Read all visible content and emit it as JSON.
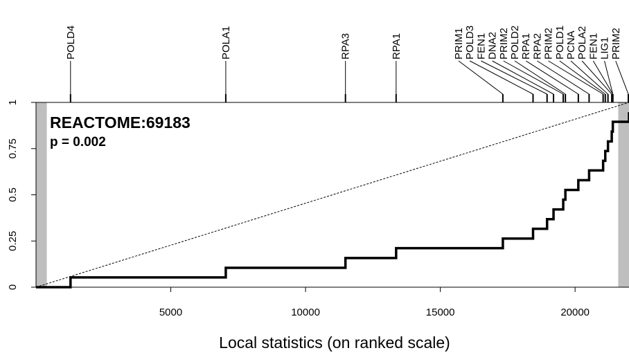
{
  "chart_data": {
    "type": "line",
    "title": "REACTOME:69183",
    "subtitle": "p = 0.002",
    "xlabel": "Local statistics (on ranked scale)",
    "ylabel": "",
    "xlim": [
      0,
      22000
    ],
    "ylim": [
      0,
      1
    ],
    "x_ticks": [
      5000,
      10000,
      15000,
      20000
    ],
    "x_tick_labels": [
      "5000",
      "10000",
      "15000",
      "20000"
    ],
    "y_ticks": [
      0,
      0.25,
      0.5,
      0.75,
      1
    ],
    "y_tick_labels": [
      "0",
      "0.25",
      "0.5",
      "0.75",
      "1"
    ],
    "shaded_regions": [
      [
        0,
        400
      ],
      [
        21600,
        22000
      ]
    ],
    "diagonal_reference": true,
    "grid": false,
    "series": [
      {
        "x": [
          0,
          1280,
          7040,
          11480,
          13360,
          17320,
          18440,
          18960,
          19200,
          19560,
          19640,
          20120,
          20520,
          21040,
          21120,
          21220,
          21360,
          21400,
          22000
        ],
        "y": [
          0,
          0.053,
          0.105,
          0.158,
          0.211,
          0.263,
          0.316,
          0.368,
          0.421,
          0.474,
          0.526,
          0.579,
          0.632,
          0.684,
          0.737,
          0.789,
          0.842,
          0.895,
          0.947
        ]
      }
    ],
    "gene_labels": [
      {
        "name": "POLD4",
        "rank": 1280
      },
      {
        "name": "POLA1",
        "rank": 7040
      },
      {
        "name": "RPA3",
        "rank": 11480
      },
      {
        "name": "RPA1",
        "rank": 13360
      },
      {
        "name": "PRIM1",
        "rank": 17320
      },
      {
        "name": "POLD3",
        "rank": 18440
      },
      {
        "name": "FEN1",
        "rank": 18960
      },
      {
        "name": "DNA2",
        "rank": 19200
      },
      {
        "name": "PRIM2",
        "rank": 19560
      },
      {
        "name": "POLD2",
        "rank": 19640
      },
      {
        "name": "RPA1",
        "rank": 20120
      },
      {
        "name": "RPA2",
        "rank": 20520
      },
      {
        "name": "PRIM2",
        "rank": 21040
      },
      {
        "name": "POLD1",
        "rank": 21120
      },
      {
        "name": "PCNA",
        "rank": 21220
      },
      {
        "name": "POLA2",
        "rank": 21360
      },
      {
        "name": "FEN1",
        "rank": 21400
      },
      {
        "name": "LIG1",
        "rank": 21400
      },
      {
        "name": "PRIM2",
        "rank": 22000
      }
    ]
  }
}
